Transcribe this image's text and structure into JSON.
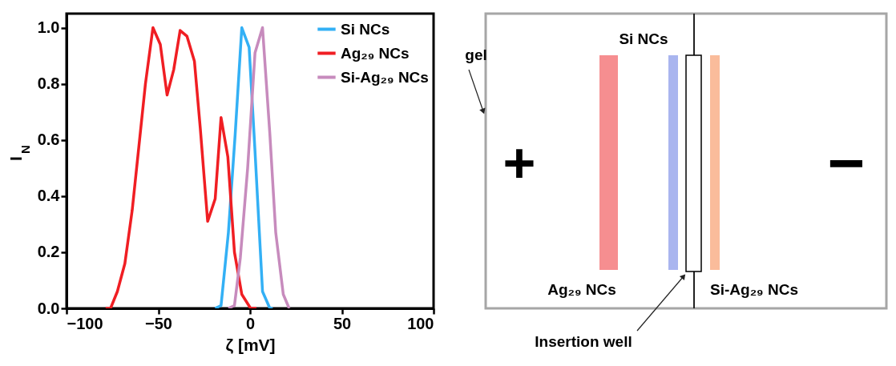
{
  "chart_data": [
    {
      "type": "line",
      "xlabel": "ζ [mV]",
      "ylabel": "I$_{N}$",
      "xlim": [
        -100,
        100
      ],
      "xticks": [
        -100,
        -50,
        0,
        50,
        100
      ],
      "ylim": [
        0,
        1.05
      ],
      "yticks": [
        {
          "value": 0,
          "label": "0.0"
        },
        0.2,
        0.4,
        0.6,
        0.8,
        {
          "value": 1,
          "label": "1.0"
        }
      ],
      "grid": false,
      "legend": "top right",
      "series": [
        {
          "name": "Si NCs",
          "color": "#33b0f5",
          "x": [
            -19,
            -15.8,
            -11.8,
            -8.1,
            -4.5,
            -0.5,
            2.7,
            6.8,
            10.8,
            12.4
          ],
          "values": [
            0,
            0.01,
            0.27,
            0.62,
            1.0,
            0.93,
            0.56,
            0.06,
            0,
            0
          ]
        },
        {
          "name": "Ag₂₉ NCs",
          "color": "#f01e23",
          "x": [
            -78.7,
            -76,
            -72.3,
            -68.2,
            -64.2,
            -60.2,
            -57,
            -52.9,
            -48.9,
            -45.2,
            -41.6,
            -38.1,
            -34.4,
            -30.3,
            -27.1,
            -23.1,
            -19,
            -15.8,
            -12.1,
            -8.5,
            -4.5,
            0.3,
            3.5
          ],
          "values": [
            0,
            0,
            0.06,
            0.16,
            0.35,
            0.6,
            0.8,
            1.0,
            0.94,
            0.76,
            0.85,
            0.99,
            0.97,
            0.88,
            0.64,
            0.31,
            0.39,
            0.68,
            0.54,
            0.2,
            0.05,
            0,
            0
          ]
        },
        {
          "name": "Si-Ag₂₉ NCs",
          "color": "#c78bbd",
          "x": [
            -11.8,
            -8.5,
            -5.3,
            -1.3,
            2.7,
            6.8,
            10.8,
            14,
            18.1,
            21.3
          ],
          "values": [
            0,
            0.01,
            0.18,
            0.5,
            0.91,
            1.0,
            0.62,
            0.27,
            0.05,
            0
          ]
        }
      ]
    },
    {
      "type": "other",
      "annotations": [
        "Si NCs",
        "gel",
        "Ag₂₉ NCs",
        "Si-Ag₂₉ NCs",
        "Insertion well",
        "+",
        "−"
      ]
    }
  ]
}
